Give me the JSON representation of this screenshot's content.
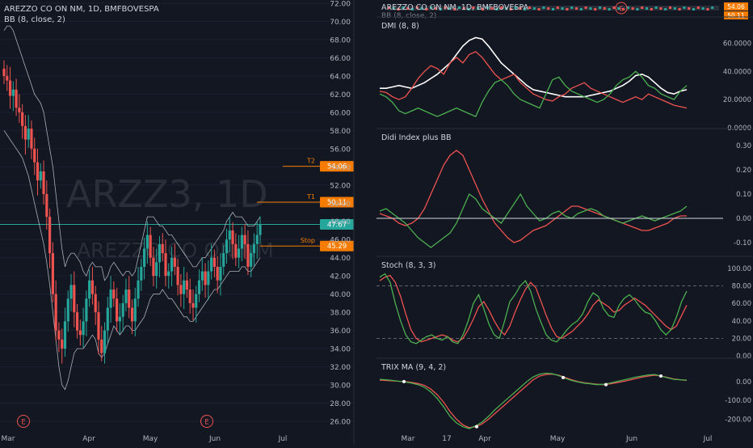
{
  "left": {
    "symbol_title": "ARZZ3, 1D",
    "watermark_sub": "AREZZO CO ON NM",
    "legend_line": "AREZZO CO ON NM, 1D, BMFBOVESPA",
    "bb_label": "BB (8, close, 2)",
    "earnings_marker": "E",
    "x_labels": [
      "Mar",
      "Apr",
      "May",
      "Jun",
      "Jul"
    ],
    "y_labels": [
      "72.00",
      "70.00",
      "68.00",
      "66.00",
      "64.00",
      "62.00",
      "60.00",
      "58.00",
      "56.00",
      "54.00",
      "52.00",
      "50.00",
      "48.00",
      "46.00",
      "44.00",
      "42.00",
      "40.00",
      "38.00",
      "36.00",
      "34.00",
      "32.00",
      "30.00",
      "28.00",
      "26.00"
    ],
    "levels": [
      {
        "name": "T2",
        "value": "54.06",
        "color": "#f57c00"
      },
      {
        "name": "T1",
        "value": "50.11",
        "color": "#f57c00"
      },
      {
        "name": "",
        "value": "47.67",
        "color": "#26a69a"
      },
      {
        "name": "Stop",
        "value": "45.29",
        "color": "#f57c00"
      }
    ],
    "colors": {
      "up": "#26a69a",
      "down": "#ef5350",
      "band": "#d1d4dc",
      "level": "#f57c00"
    }
  },
  "right": {
    "header_line": "AREZZO CO ON NM, 1D, BMFBOVESPA",
    "header_sub": "BB (8, close, 2)",
    "header_badges": [
      "54.06",
      "50.11"
    ],
    "earnings_marker": "E",
    "x_labels": [
      "Mar",
      "17",
      "Apr",
      "May",
      "Jun",
      "Jul"
    ],
    "panels": [
      {
        "title": "DMI (8, 8)",
        "y_labels": [
          "60.0000",
          "40.0000",
          "20.0000",
          "0.0000"
        ]
      },
      {
        "title": "Didi Index plus BB",
        "y_labels": [
          "0.30",
          "0.20",
          "0.10",
          "0.00",
          "-0.10"
        ]
      },
      {
        "title": "Stoch (8, 3, 3)",
        "y_labels": [
          "100.00",
          "80.00",
          "60.00",
          "40.00",
          "20.00",
          "0.00"
        ]
      },
      {
        "title": "TRIX MA (9, 4, 2)",
        "y_labels": [
          "0.00",
          "-100.00",
          "-200.00"
        ]
      }
    ]
  },
  "chart_data": [
    {
      "type": "candlestick",
      "title": "ARZZ3, 1D",
      "subtitle": "AREZZO CO ON NM, 1D, BMFBOVESPA",
      "indicator": "BB (8, close, 2)",
      "ylim": [
        25,
        72.5
      ],
      "x_ticks": [
        "Mar",
        "Apr",
        "May",
        "Jun",
        "Jul"
      ],
      "close": [
        64.0,
        63.5,
        61.8,
        62.5,
        60.5,
        60.0,
        58.5,
        57.0,
        58.2,
        56.0,
        54.5,
        52.5,
        53.5,
        51.0,
        48.5,
        44.5,
        40.0,
        36.0,
        35.0,
        34.0,
        37.0,
        39.5,
        41.0,
        38.0,
        36.0,
        35.5,
        37.0,
        39.5,
        41.5,
        40.0,
        38.0,
        35.0,
        33.5,
        36.0,
        38.5,
        40.5,
        39.5,
        37.0,
        37.5,
        39.0,
        40.5,
        38.5,
        37.0,
        39.5,
        41.5,
        43.0,
        45.0,
        46.5,
        44.0,
        42.0,
        43.5,
        45.5,
        44.5,
        42.0,
        42.5,
        44.0,
        43.0,
        41.0,
        40.0,
        41.5,
        40.5,
        39.0,
        38.5,
        40.0,
        41.5,
        42.5,
        41.0,
        42.5,
        44.0,
        43.0,
        41.5,
        43.0,
        44.5,
        46.0,
        47.0,
        45.5,
        44.0,
        45.0,
        46.5,
        45.5,
        43.0,
        44.5,
        45.5,
        46.5,
        47.67
      ],
      "bb_upper": [
        69.0,
        69.5,
        69.5,
        69.0,
        68.0,
        67.0,
        66.0,
        65.0,
        64.0,
        63.0,
        62.0,
        61.5,
        61.0,
        60.0,
        58.0,
        56.0,
        54.0,
        51.0,
        48.0,
        45.0,
        43.0,
        44.0,
        44.5,
        44.5,
        44.0,
        43.5,
        42.5,
        42.0,
        43.0,
        43.5,
        43.0,
        43.0,
        43.0,
        41.5,
        42.0,
        43.0,
        43.5,
        43.0,
        42.5,
        42.0,
        42.5,
        42.5,
        42.0,
        42.5,
        44.0,
        45.5,
        47.0,
        48.5,
        48.5,
        48.5,
        48.0,
        47.5,
        47.5,
        47.0,
        46.5,
        46.5,
        46.0,
        45.5,
        45.0,
        44.5,
        44.0,
        43.5,
        43.0,
        43.0,
        43.5,
        44.0,
        44.0,
        44.5,
        45.0,
        45.5,
        46.0,
        46.5,
        47.0,
        48.0,
        48.5,
        49.0,
        48.5,
        48.5,
        48.5,
        48.0,
        47.5,
        47.5,
        47.5,
        48.0,
        48.5
      ],
      "bb_lower": [
        58.0,
        57.5,
        57.0,
        56.5,
        56.0,
        55.5,
        55.0,
        54.0,
        53.0,
        51.5,
        50.0,
        48.5,
        47.0,
        45.5,
        43.5,
        41.0,
        38.0,
        35.0,
        32.0,
        30.0,
        29.5,
        30.5,
        32.0,
        33.5,
        34.0,
        34.0,
        34.0,
        34.5,
        35.0,
        35.5,
        35.0,
        33.5,
        33.0,
        33.5,
        34.5,
        35.5,
        36.5,
        36.0,
        35.5,
        36.0,
        36.5,
        36.5,
        36.0,
        36.0,
        36.5,
        37.0,
        37.5,
        38.5,
        39.5,
        40.0,
        40.0,
        40.0,
        40.5,
        40.0,
        39.5,
        39.5,
        39.0,
        38.5,
        38.0,
        37.5,
        37.5,
        37.0,
        37.0,
        37.5,
        38.0,
        38.5,
        39.0,
        39.5,
        40.0,
        40.5,
        40.5,
        41.0,
        41.5,
        42.0,
        42.5,
        42.5,
        42.5,
        42.5,
        43.0,
        43.0,
        42.5,
        42.5,
        43.0,
        43.5,
        44.0
      ],
      "levels": {
        "T2": 54.06,
        "T1": 50.11,
        "last": 47.67,
        "Stop": 45.29
      }
    },
    {
      "type": "line",
      "title": "DMI (8, 8)",
      "ylim": [
        0,
        70
      ],
      "series": [
        {
          "color": "#ffffff",
          "values": [
            28,
            28,
            29,
            30,
            29,
            28,
            30,
            32,
            35,
            38,
            42,
            46,
            52,
            58,
            62,
            64,
            63,
            58,
            52,
            46,
            42,
            38,
            34,
            30,
            27,
            26,
            25,
            24,
            23,
            22,
            22,
            22,
            22,
            23,
            24,
            25,
            26,
            28,
            30,
            33,
            37,
            38,
            36,
            32,
            28,
            25,
            24,
            26,
            27
          ]
        },
        {
          "color": "#ef5350",
          "values": [
            26,
            25,
            22,
            20,
            22,
            28,
            35,
            40,
            44,
            42,
            38,
            46,
            50,
            46,
            52,
            54,
            50,
            44,
            38,
            34,
            36,
            38,
            32,
            28,
            24,
            22,
            20,
            19,
            22,
            24,
            28,
            30,
            32,
            28,
            26,
            24,
            22,
            20,
            18,
            20,
            22,
            20,
            24,
            22,
            20,
            18,
            16,
            15,
            14
          ]
        },
        {
          "color": "#4caf50",
          "values": [
            24,
            22,
            18,
            12,
            10,
            12,
            14,
            12,
            10,
            8,
            10,
            12,
            14,
            12,
            10,
            8,
            18,
            26,
            32,
            34,
            30,
            24,
            20,
            18,
            16,
            14,
            24,
            34,
            36,
            30,
            26,
            24,
            22,
            20,
            18,
            20,
            24,
            30,
            34,
            36,
            40,
            36,
            30,
            28,
            24,
            22,
            20,
            26,
            30
          ]
        }
      ]
    },
    {
      "type": "line",
      "title": "Didi Index plus BB",
      "ylim": [
        -0.15,
        0.32
      ],
      "series": [
        {
          "color": "#ef5350",
          "values": [
            0.02,
            0.01,
            0.0,
            -0.02,
            -0.03,
            -0.02,
            0.0,
            0.04,
            0.1,
            0.16,
            0.22,
            0.26,
            0.28,
            0.26,
            0.2,
            0.14,
            0.08,
            0.03,
            -0.02,
            -0.05,
            -0.08,
            -0.1,
            -0.09,
            -0.07,
            -0.05,
            -0.04,
            -0.03,
            -0.01,
            0.01,
            0.03,
            0.05,
            0.05,
            0.04,
            0.03,
            0.02,
            0.01,
            0.0,
            -0.01,
            -0.02,
            -0.03,
            -0.04,
            -0.05,
            -0.05,
            -0.04,
            -0.03,
            -0.02,
            0.0,
            0.01,
            0.01
          ]
        },
        {
          "color": "#4caf50",
          "values": [
            0.03,
            0.04,
            0.02,
            0.0,
            -0.02,
            -0.05,
            -0.08,
            -0.1,
            -0.12,
            -0.1,
            -0.08,
            -0.06,
            -0.02,
            0.04,
            0.1,
            0.08,
            0.04,
            0.02,
            0.0,
            -0.02,
            0.02,
            0.06,
            0.1,
            0.05,
            0.02,
            -0.01,
            0.0,
            0.02,
            0.03,
            0.01,
            0.0,
            0.02,
            0.03,
            0.04,
            0.03,
            0.01,
            0.0,
            -0.01,
            -0.02,
            -0.01,
            0.0,
            0.01,
            0.0,
            -0.01,
            0.0,
            0.01,
            0.02,
            0.03,
            0.05
          ]
        },
        {
          "color": "#d1d4dc",
          "values": [
            0,
            0
          ]
        }
      ]
    },
    {
      "type": "line",
      "title": "Stoch (8, 3, 3)",
      "ylim": [
        0,
        100
      ],
      "reference_lines": [
        80,
        20
      ],
      "series": [
        {
          "color": "#ef5350",
          "values": [
            86,
            90,
            92,
            84,
            68,
            48,
            30,
            20,
            16,
            18,
            20,
            22,
            24,
            22,
            18,
            16,
            20,
            30,
            42,
            56,
            62,
            52,
            40,
            30,
            24,
            34,
            50,
            64,
            76,
            84,
            78,
            62,
            46,
            32,
            22,
            20,
            24,
            28,
            34,
            40,
            48,
            58,
            64,
            60,
            56,
            50,
            52,
            58,
            62,
            66,
            62,
            58,
            52,
            46,
            40,
            34,
            30,
            34,
            46,
            58
          ]
        },
        {
          "color": "#4caf50",
          "values": [
            90,
            94,
            84,
            60,
            40,
            24,
            16,
            14,
            18,
            22,
            24,
            20,
            18,
            22,
            16,
            14,
            24,
            40,
            60,
            70,
            54,
            36,
            24,
            20,
            40,
            62,
            70,
            80,
            86,
            74,
            54,
            38,
            24,
            18,
            16,
            22,
            30,
            36,
            40,
            48,
            62,
            72,
            68,
            54,
            46,
            44,
            58,
            66,
            70,
            64,
            56,
            50,
            48,
            40,
            30,
            24,
            30,
            44,
            62,
            74
          ]
        }
      ]
    },
    {
      "type": "line",
      "title": "TRIX MA (9, 4, 2)",
      "ylim": [
        -250,
        60
      ],
      "series": [
        {
          "color": "#ef5350",
          "values": [
            8,
            6,
            4,
            2,
            0,
            -4,
            -10,
            -20,
            -40,
            -70,
            -110,
            -160,
            -200,
            -230,
            -245,
            -240,
            -225,
            -200,
            -170,
            -140,
            -110,
            -80,
            -50,
            -20,
            10,
            30,
            38,
            40,
            34,
            22,
            10,
            0,
            -6,
            -10,
            -14,
            -16,
            -12,
            -6,
            0,
            8,
            16,
            24,
            30,
            34,
            30,
            22,
            14,
            10,
            6
          ]
        },
        {
          "color": "#4caf50",
          "values": [
            12,
            10,
            6,
            2,
            -2,
            -8,
            -16,
            -30,
            -55,
            -90,
            -135,
            -185,
            -220,
            -240,
            -250,
            -235,
            -215,
            -185,
            -150,
            -120,
            -90,
            -60,
            -30,
            0,
            25,
            40,
            45,
            42,
            32,
            18,
            6,
            -2,
            -8,
            -12,
            -16,
            -14,
            -8,
            0,
            8,
            16,
            24,
            30,
            36,
            38,
            30,
            20,
            12,
            10,
            8
          ]
        }
      ]
    }
  ]
}
